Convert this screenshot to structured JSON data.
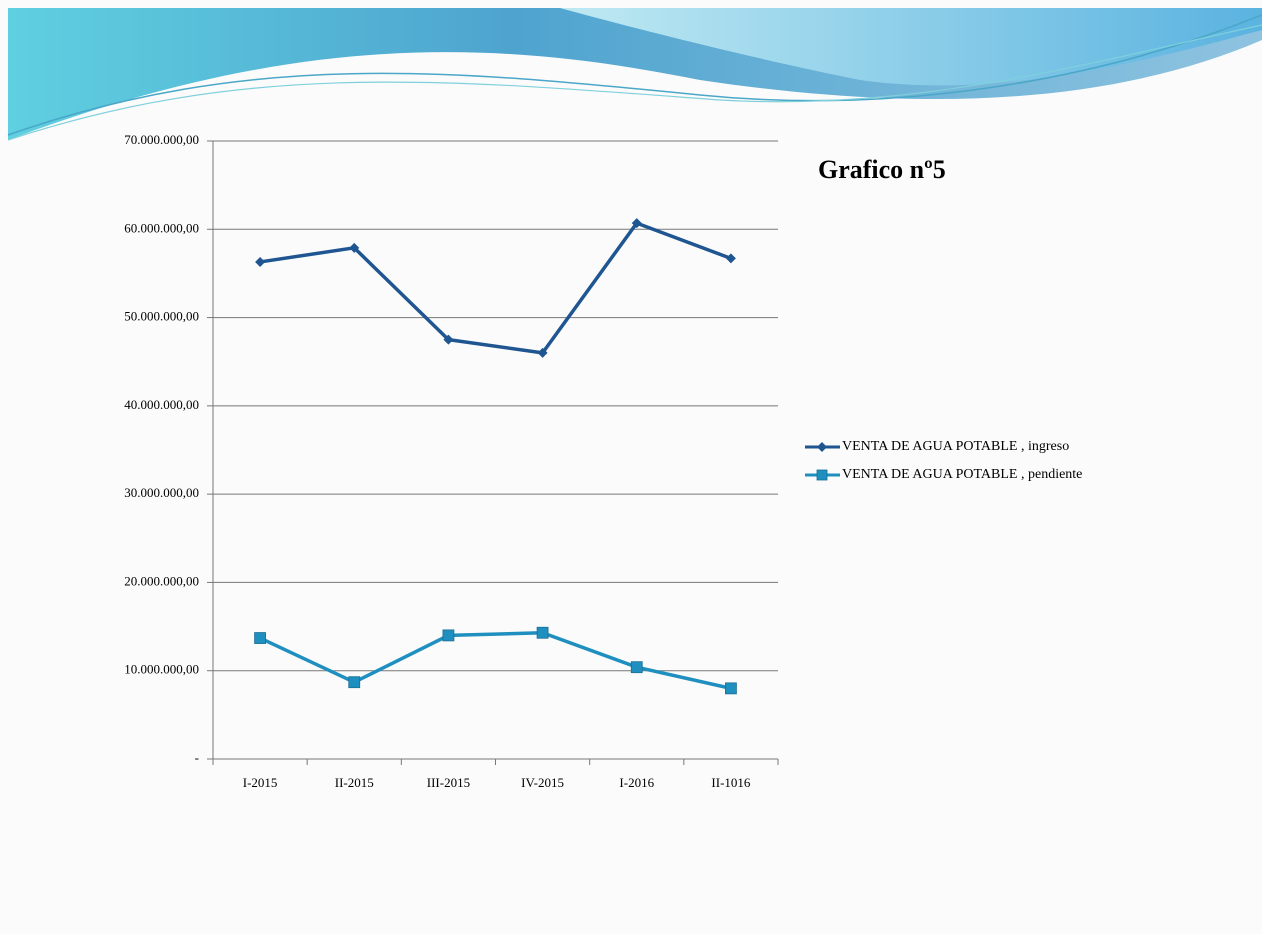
{
  "chart_data": {
    "type": "line",
    "title": "Grafico nº5",
    "categories": [
      "I-2015",
      "II-2015",
      "III-2015",
      "IV-2015",
      "I-2016",
      "II-1016"
    ],
    "series": [
      {
        "name": "VENTA DE AGUA POTABLE , ingreso",
        "color": "#1f5591",
        "marker": "diamond",
        "values": [
          56300000,
          57900000,
          47500000,
          46000000,
          60700000,
          56700000
        ]
      },
      {
        "name": "VENTA DE AGUA POTABLE , pendiente",
        "color": "#1f8fbf",
        "marker": "square",
        "values": [
          13700000,
          8700000,
          14000000,
          14300000,
          10400000,
          8000000
        ]
      }
    ],
    "ylim": [
      0,
      70000000
    ],
    "yticks": [
      {
        "value": 0,
        "label": "-"
      },
      {
        "value": 10000000,
        "label": "10.000.000,00"
      },
      {
        "value": 20000000,
        "label": "20.000.000,00"
      },
      {
        "value": 30000000,
        "label": "30.000.000,00"
      },
      {
        "value": 40000000,
        "label": "40.000.000,00"
      },
      {
        "value": 50000000,
        "label": "50.000.000,00"
      },
      {
        "value": 60000000,
        "label": "60.000.000,00"
      },
      {
        "value": 70000000,
        "label": "70.000.000,00"
      }
    ],
    "grid": true,
    "legend": "right"
  }
}
